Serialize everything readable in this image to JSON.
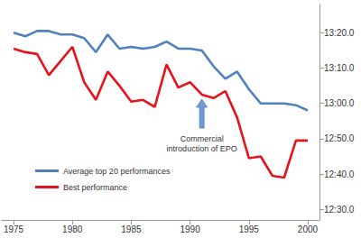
{
  "chart_data": {
    "type": "line",
    "x": [
      1975,
      1976,
      1977,
      1978,
      1979,
      1980,
      1981,
      1982,
      1983,
      1984,
      1985,
      1986,
      1987,
      1988,
      1989,
      1990,
      1991,
      1992,
      1993,
      1994,
      1995,
      1996,
      1997,
      1998,
      1999,
      2000
    ],
    "series": [
      {
        "name": "Average top 20 performances",
        "color": "#4F81BD",
        "values": [
          800,
          799,
          800.5,
          800.5,
          799.5,
          799.5,
          798.5,
          794.5,
          799.5,
          795.5,
          796,
          795.5,
          796,
          797.5,
          795.5,
          795.5,
          795,
          790.5,
          787,
          789,
          784,
          780,
          780,
          780,
          779.5,
          778
        ]
      },
      {
        "name": "Best performance",
        "color": "#E8121A",
        "values": [
          795.5,
          794.5,
          794,
          788,
          792,
          796,
          786,
          781,
          789,
          785,
          780.5,
          781,
          779,
          791,
          784.5,
          786,
          782.5,
          781.5,
          783.5,
          776,
          764.5,
          765,
          759.5,
          759,
          769.5,
          769.5
        ]
      }
    ],
    "xlim": [
      1974,
      2001
    ],
    "xticks": [
      1975,
      1980,
      1985,
      1990,
      1995,
      2000
    ],
    "ylim": [
      747,
      808
    ],
    "yticks": [
      {
        "value": 750,
        "label": "12:30.0"
      },
      {
        "value": 760,
        "label": "12:40.0"
      },
      {
        "value": 770,
        "label": "12:50.0"
      },
      {
        "value": 780,
        "label": "13:00.0"
      },
      {
        "value": 790,
        "label": "13:10.0"
      },
      {
        "value": 800,
        "label": "13:20.0"
      }
    ],
    "grid": false,
    "legend": "lower left",
    "annotations": [
      {
        "text": "Commercial\nintroduction of EPO",
        "x": 1991
      }
    ]
  }
}
